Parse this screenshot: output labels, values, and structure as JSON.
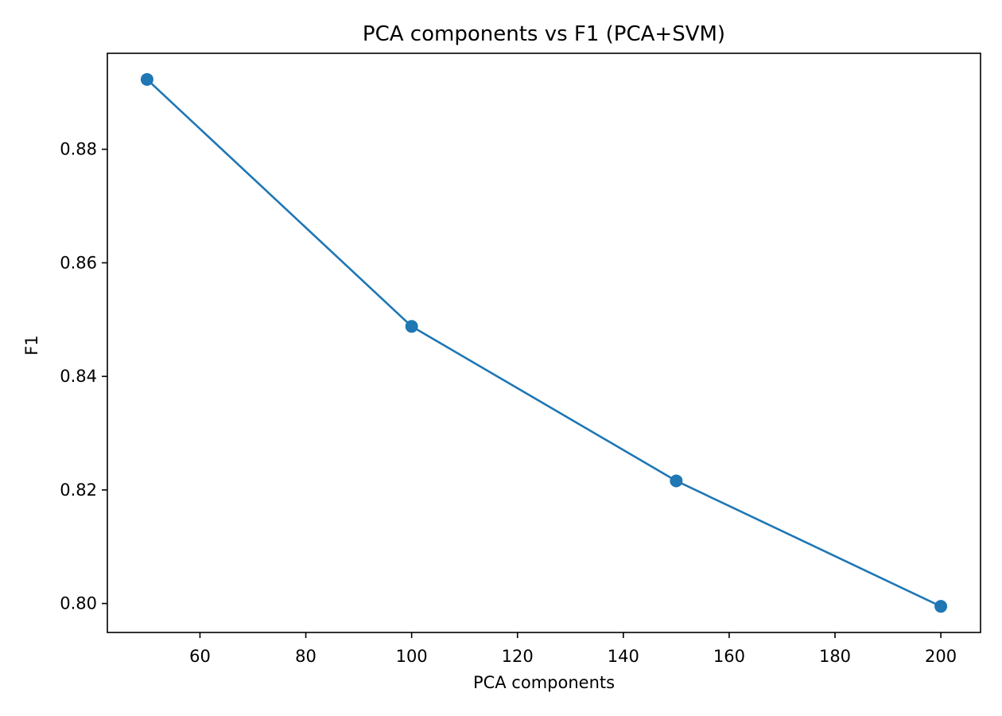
{
  "chart_data": {
    "type": "line",
    "title": "PCA components vs F1 (PCA+SVM)",
    "xlabel": "PCA components",
    "ylabel": "F1",
    "x": [
      50,
      100,
      150,
      200
    ],
    "series": [
      {
        "values": [
          0.8923,
          0.8488,
          0.8216,
          0.7995
        ],
        "color": "#1f77b4",
        "marker": "circle"
      }
    ],
    "xlim": [
      42.5,
      207.5
    ],
    "ylim": [
      0.7949,
      0.8969
    ],
    "xticks": [
      60,
      80,
      100,
      120,
      140,
      160,
      180,
      200
    ],
    "yticks": [
      0.8,
      0.82,
      0.84,
      0.86,
      0.88
    ],
    "xtick_labels": [
      "60",
      "80",
      "100",
      "120",
      "140",
      "160",
      "180",
      "200"
    ],
    "ytick_labels": [
      "0.80",
      "0.82",
      "0.84",
      "0.86",
      "0.88"
    ],
    "grid": false,
    "legend": "none"
  }
}
